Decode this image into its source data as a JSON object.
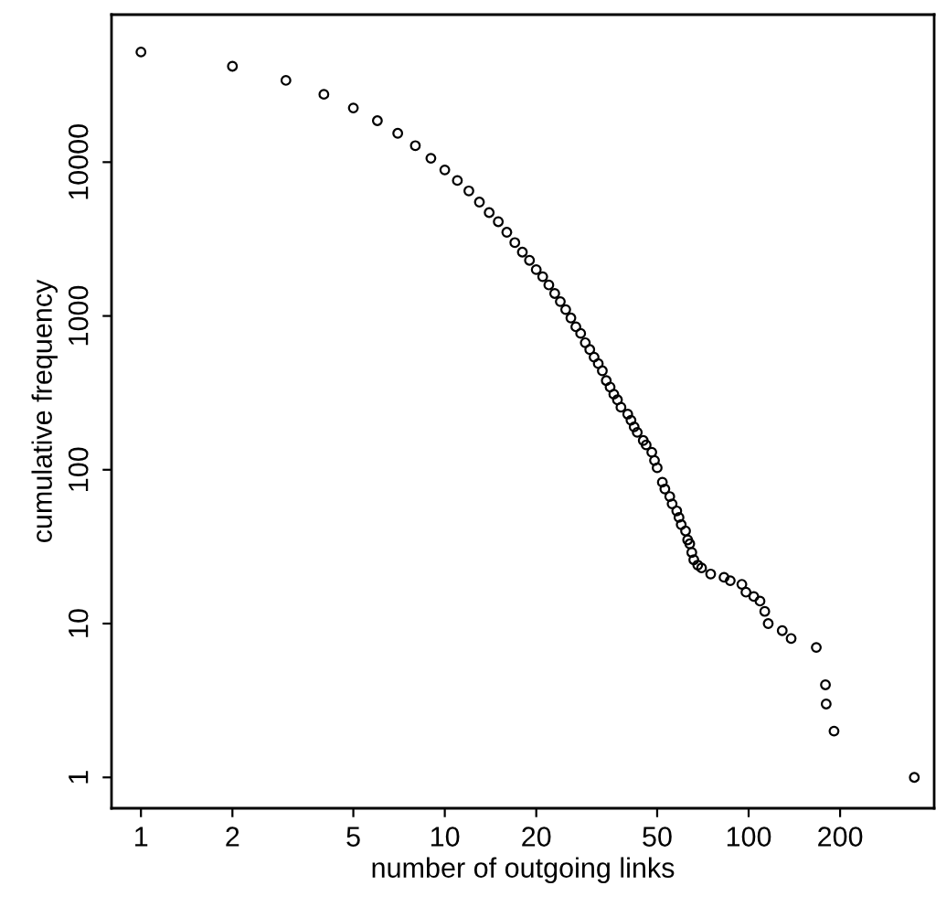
{
  "chart_data": {
    "type": "scatter",
    "xlabel": "number of outgoing links",
    "ylabel": "cumulative frequency",
    "log": "xy",
    "marker": "circle",
    "grid": false,
    "color": "#000000",
    "xlim": [
      0.8,
      408
    ],
    "ylim": [
      0.63,
      91000
    ],
    "xticks": [
      1,
      2,
      5,
      10,
      20,
      50,
      100,
      200
    ],
    "yticks": [
      1,
      10,
      100,
      1000,
      10000
    ],
    "x": [
      1,
      2,
      3,
      4,
      5,
      6,
      7,
      8,
      9,
      10,
      11,
      12,
      13,
      14,
      15,
      16,
      17,
      18,
      19,
      20,
      21,
      22,
      23,
      24,
      25,
      26,
      27,
      28,
      29,
      30,
      31,
      32,
      33,
      34,
      35,
      36,
      37,
      38,
      40,
      41,
      42,
      43,
      45,
      46,
      48,
      49,
      50,
      52,
      53,
      55,
      56,
      58,
      59,
      60,
      62,
      63,
      64,
      65,
      66,
      68,
      70,
      75,
      83,
      87,
      95,
      98,
      104,
      109,
      113,
      116,
      129,
      138,
      167,
      179,
      180,
      191,
      351
    ],
    "values": [
      52000,
      42000,
      34000,
      27600,
      22500,
      18600,
      15400,
      12800,
      10600,
      8900,
      7600,
      6500,
      5500,
      4700,
      4100,
      3500,
      3000,
      2600,
      2300,
      2000,
      1800,
      1590,
      1400,
      1240,
      1100,
      970,
      850,
      770,
      670,
      605,
      540,
      490,
      440,
      380,
      345,
      310,
      285,
      255,
      230,
      210,
      190,
      175,
      155,
      145,
      130,
      115,
      103,
      83,
      75,
      67,
      60,
      54,
      49,
      44,
      40,
      35,
      33,
      29,
      26,
      24,
      23,
      21,
      20,
      19,
      18,
      16,
      15,
      14,
      12,
      10,
      9,
      8,
      7,
      4,
      3,
      2,
      1
    ]
  }
}
